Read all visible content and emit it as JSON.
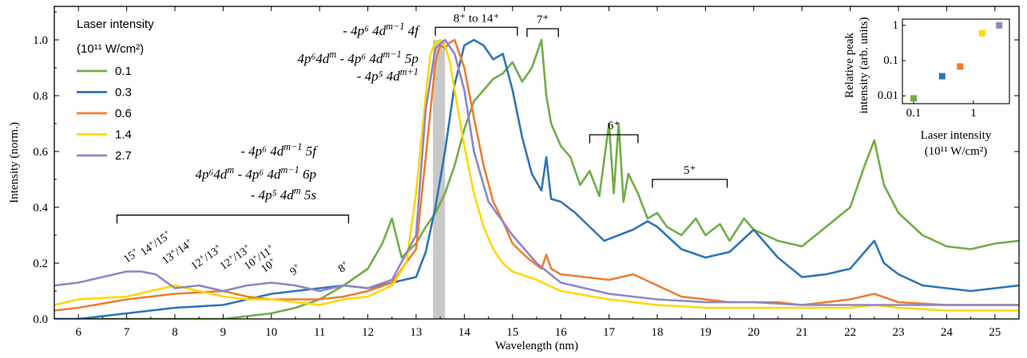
{
  "chart_data": [
    {
      "type": "line",
      "xlabel": "Wavelength (nm)",
      "ylabel": "Intensity (norm.)",
      "xlim": [
        5.5,
        25.5
      ],
      "ylim": [
        0.0,
        1.12
      ],
      "x_ticks": [
        6,
        7,
        8,
        9,
        10,
        11,
        12,
        13,
        14,
        15,
        16,
        17,
        18,
        19,
        20,
        21,
        22,
        23,
        24,
        25
      ],
      "y_ticks": [
        0.0,
        0.2,
        0.4,
        0.6,
        0.8,
        1.0
      ],
      "grid": false,
      "legend": {
        "placement": "top-left",
        "title_line1": "Laser intensity",
        "title_line2": "(10¹¹ W/cm²)"
      },
      "series": [
        {
          "name": "0.1",
          "color": "#70ad47",
          "x": [
            5.5,
            6,
            7,
            8,
            9,
            9.5,
            10,
            10.5,
            11,
            11.5,
            12,
            12.3,
            12.5,
            12.7,
            13,
            13.2,
            13.4,
            13.6,
            13.8,
            14,
            14.2,
            14.4,
            14.6,
            14.8,
            15,
            15.2,
            15.4,
            15.6,
            15.7,
            15.8,
            16,
            16.2,
            16.4,
            16.6,
            16.8,
            17,
            17.1,
            17.2,
            17.3,
            17.4,
            17.6,
            17.8,
            18,
            18.2,
            18.5,
            18.8,
            19,
            19.3,
            19.5,
            19.8,
            20,
            20.5,
            21,
            21.5,
            22,
            22.3,
            22.5,
            22.7,
            23,
            23.5,
            24,
            24.5,
            25,
            25.5
          ],
          "y": [
            0.0,
            0.0,
            0.0,
            0.0,
            0.0,
            0.01,
            0.02,
            0.04,
            0.07,
            0.12,
            0.18,
            0.27,
            0.36,
            0.22,
            0.27,
            0.33,
            0.38,
            0.45,
            0.55,
            0.68,
            0.78,
            0.82,
            0.86,
            0.88,
            0.92,
            0.85,
            0.9,
            1.0,
            0.8,
            0.7,
            0.62,
            0.58,
            0.48,
            0.53,
            0.44,
            0.7,
            0.45,
            0.7,
            0.42,
            0.52,
            0.45,
            0.36,
            0.38,
            0.33,
            0.3,
            0.36,
            0.3,
            0.34,
            0.28,
            0.36,
            0.32,
            0.28,
            0.26,
            0.33,
            0.4,
            0.55,
            0.64,
            0.48,
            0.38,
            0.3,
            0.26,
            0.25,
            0.27,
            0.28
          ]
        },
        {
          "name": "0.3",
          "color": "#2e75b6",
          "x": [
            5.5,
            6,
            7,
            8,
            9,
            9.5,
            10,
            10.5,
            11,
            11.5,
            12,
            12.5,
            13,
            13.2,
            13.4,
            13.6,
            13.8,
            14,
            14.2,
            14.4,
            14.6,
            14.8,
            15,
            15.2,
            15.4,
            15.6,
            15.7,
            15.8,
            16,
            16.3,
            16.6,
            16.9,
            17.2,
            17.5,
            17.8,
            18,
            18.5,
            19,
            19.5,
            20,
            20.5,
            21,
            21.5,
            22,
            22.3,
            22.5,
            22.7,
            23,
            23.5,
            24,
            24.5,
            25,
            25.5
          ],
          "y": [
            0.0,
            0.0,
            0.02,
            0.04,
            0.05,
            0.07,
            0.09,
            0.1,
            0.11,
            0.12,
            0.11,
            0.13,
            0.15,
            0.24,
            0.4,
            0.6,
            0.84,
            0.98,
            1.0,
            0.98,
            0.93,
            0.95,
            0.82,
            0.65,
            0.52,
            0.46,
            0.58,
            0.43,
            0.42,
            0.38,
            0.33,
            0.28,
            0.3,
            0.32,
            0.35,
            0.33,
            0.25,
            0.22,
            0.24,
            0.32,
            0.22,
            0.15,
            0.16,
            0.18,
            0.24,
            0.28,
            0.2,
            0.16,
            0.12,
            0.11,
            0.1,
            0.11,
            0.12
          ]
        },
        {
          "name": "0.6",
          "color": "#ed7d31",
          "x": [
            5.5,
            6,
            7,
            8,
            9,
            9.5,
            10,
            10.5,
            11,
            11.5,
            12,
            12.5,
            13,
            13.2,
            13.4,
            13.5,
            13.6,
            13.7,
            13.8,
            14,
            14.2,
            14.4,
            14.6,
            14.8,
            15,
            15.3,
            15.6,
            15.7,
            15.8,
            16,
            16.5,
            17,
            17.5,
            18,
            18.5,
            19,
            19.5,
            20,
            20.5,
            21,
            22,
            22.5,
            23,
            24,
            25,
            25.5
          ],
          "y": [
            0.03,
            0.04,
            0.07,
            0.09,
            0.1,
            0.08,
            0.07,
            0.07,
            0.07,
            0.08,
            0.1,
            0.13,
            0.25,
            0.58,
            0.92,
            0.98,
            0.97,
            0.99,
            1.0,
            0.9,
            0.72,
            0.55,
            0.42,
            0.35,
            0.27,
            0.22,
            0.18,
            0.23,
            0.18,
            0.16,
            0.15,
            0.14,
            0.16,
            0.12,
            0.08,
            0.07,
            0.06,
            0.06,
            0.06,
            0.05,
            0.07,
            0.09,
            0.06,
            0.05,
            0.05,
            0.05
          ]
        },
        {
          "name": "1.4",
          "color": "#ffd700",
          "x": [
            5.5,
            6,
            7,
            7.5,
            8,
            9,
            9.5,
            10,
            10.5,
            11,
            11.5,
            12,
            12.5,
            12.8,
            13,
            13.2,
            13.3,
            13.4,
            13.5,
            13.6,
            13.7,
            13.8,
            14,
            14.2,
            14.4,
            14.6,
            14.8,
            15,
            15.5,
            16,
            17,
            18,
            19,
            20,
            21,
            22,
            22.5,
            23,
            24,
            25,
            25.5
          ],
          "y": [
            0.05,
            0.07,
            0.08,
            0.1,
            0.12,
            0.08,
            0.07,
            0.07,
            0.06,
            0.05,
            0.07,
            0.08,
            0.12,
            0.2,
            0.45,
            0.8,
            0.95,
            0.99,
            1.0,
            0.98,
            0.92,
            0.82,
            0.62,
            0.45,
            0.33,
            0.25,
            0.2,
            0.17,
            0.14,
            0.1,
            0.07,
            0.05,
            0.04,
            0.04,
            0.04,
            0.04,
            0.05,
            0.04,
            0.03,
            0.03,
            0.03
          ]
        },
        {
          "name": "2.7",
          "color": "#8e86c5",
          "x": [
            5.5,
            6,
            6.5,
            7,
            7.3,
            7.6,
            8,
            8.5,
            9,
            9.5,
            10,
            10.5,
            11,
            11.5,
            12,
            12.5,
            13,
            13.2,
            13.4,
            13.6,
            13.8,
            14,
            14.2,
            14.5,
            15,
            15.5,
            16,
            17,
            18,
            19,
            20,
            21,
            22,
            23,
            24,
            25,
            25.5
          ],
          "y": [
            0.12,
            0.13,
            0.15,
            0.17,
            0.17,
            0.16,
            0.11,
            0.12,
            0.1,
            0.12,
            0.13,
            0.12,
            0.1,
            0.12,
            0.11,
            0.14,
            0.3,
            0.75,
            0.97,
            1.0,
            0.95,
            0.82,
            0.6,
            0.42,
            0.3,
            0.2,
            0.13,
            0.09,
            0.07,
            0.06,
            0.06,
            0.05,
            0.05,
            0.05,
            0.05,
            0.05,
            0.05
          ]
        }
      ],
      "highlight_band": {
        "x_range": [
          13.35,
          13.6
        ],
        "color": "#c8c8c8"
      },
      "annotations": {
        "bracket_left": {
          "x_range": [
            6.8,
            11.6
          ],
          "y": 0.372,
          "drop": 0.03,
          "label_lines": [
            "- 4p⁶ 4d^{m−1} 5f",
            "4p⁶4d^m - 4p⁶ 4d^{m−1} 6p",
            "- 4p⁵ 4d^m  5s"
          ]
        },
        "bracket_top": {
          "x_range": [
            13.4,
            15.1
          ],
          "y": 1.045,
          "drop": 0.03,
          "label": "8⁺ to 14⁺",
          "label_lines": [
            "- 4p⁶ 4d^{m−1} 4f",
            "4p⁶4d^m - 4p⁶ 4d^{m−1} 5p",
            "- 4p⁵ 4d^{m+1}"
          ]
        },
        "bracket_7": {
          "x_range": [
            15.3,
            15.95
          ],
          "y": 1.04,
          "drop": 0.03,
          "label": "7⁺"
        },
        "bracket_6": {
          "x_range": [
            16.6,
            17.6
          ],
          "y": 0.66,
          "drop": 0.03,
          "label": "6⁺"
        },
        "bracket_5": {
          "x_range": [
            17.9,
            19.45
          ],
          "y": 0.5,
          "drop": 0.03,
          "label": "5⁺"
        },
        "charge_state_labels": [
          {
            "label": "15⁺",
            "x": 7.0,
            "y": 0.2
          },
          {
            "label": "14⁺/15⁺",
            "x": 7.35,
            "y": 0.225
          },
          {
            "label": "13⁺/14⁺",
            "x": 7.8,
            "y": 0.195
          },
          {
            "label": "12⁺/13⁺",
            "x": 8.4,
            "y": 0.175
          },
          {
            "label": "12⁺/13⁺",
            "x": 9.0,
            "y": 0.175
          },
          {
            "label": "10⁺/11⁺",
            "x": 9.5,
            "y": 0.175
          },
          {
            "label": "10⁺",
            "x": 9.85,
            "y": 0.165
          },
          {
            "label": "9⁺",
            "x": 10.45,
            "y": 0.155
          },
          {
            "label": "8⁺",
            "x": 11.45,
            "y": 0.165
          }
        ]
      }
    },
    {
      "type": "scatter",
      "xlabel_line1": "Laser intensity",
      "xlabel_line2": "(10¹¹ W/cm²)",
      "ylabel_line1": "Relative peak",
      "ylabel_line2": "intensity (arb. units)",
      "x_scale": "log",
      "y_scale": "log",
      "xlim": [
        0.065,
        4.0
      ],
      "ylim": [
        0.006,
        1.5
      ],
      "x_ticks": [
        0.1,
        1
      ],
      "x_tick_labels": [
        "0.1",
        "1"
      ],
      "y_ticks": [
        0.01,
        0.1,
        1
      ],
      "y_tick_labels": [
        "0.01",
        "0.1",
        "1"
      ],
      "points": [
        {
          "x": 0.1,
          "y": 0.0085,
          "color": "#70ad47"
        },
        {
          "x": 0.3,
          "y": 0.036,
          "color": "#2e75b6"
        },
        {
          "x": 0.6,
          "y": 0.068,
          "color": "#ed7d31"
        },
        {
          "x": 1.4,
          "y": 0.6,
          "color": "#ffd700"
        },
        {
          "x": 2.7,
          "y": 1.0,
          "color": "#8e86c5"
        }
      ]
    }
  ]
}
